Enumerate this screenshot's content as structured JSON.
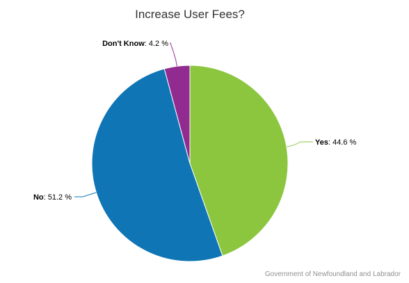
{
  "chart_data": {
    "type": "pie",
    "title": "Increase User Fees?",
    "slices": [
      {
        "label": "Yes",
        "value": 44.6,
        "display": "44.6 %",
        "color": "#8cc63f"
      },
      {
        "label": "No",
        "value": 51.2,
        "display": "51.2 %",
        "color": "#0f75b5"
      },
      {
        "label": "Don't Know",
        "value": 4.2,
        "display": "4.2 %",
        "color": "#922b90"
      }
    ],
    "start_angle_deg": 0,
    "direction": "clockwise",
    "legend": "none"
  },
  "credit": "Government of Newfoundland and Labrador"
}
